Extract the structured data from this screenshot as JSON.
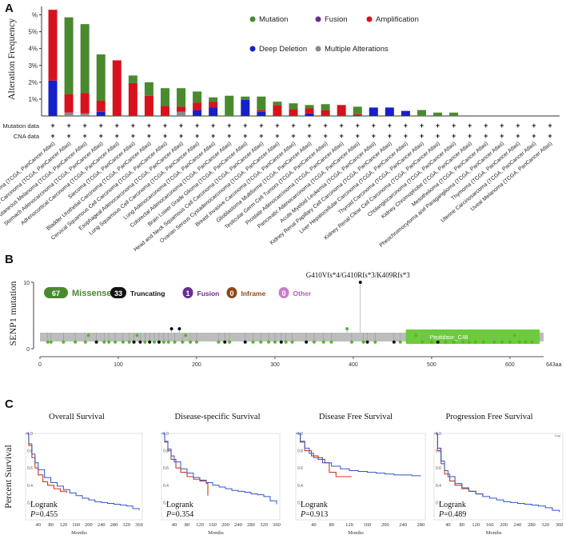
{
  "panels": {
    "a": "A",
    "b": "B",
    "c": "C"
  },
  "colors": {
    "mutation": "#4a8a2e",
    "fusion": "#6a2c91",
    "amplification": "#d8121d",
    "deep_deletion": "#1520c8",
    "multiple": "#8a8a8a",
    "lollipop_green": "#55b72d",
    "domain_green": "#6ccc3c",
    "km_blue": "#2f55c9",
    "km_red": "#d23a1a"
  },
  "chart_data": [
    {
      "type": "bar",
      "title": "",
      "ylabel": "Alteration Frequency",
      "ylim": [
        0,
        6.5
      ],
      "yticks": [
        1,
        2,
        3,
        4,
        5,
        6
      ],
      "ytick_labels": [
        "1%",
        "2%",
        "3%",
        "4%",
        "5%",
        "%"
      ],
      "legend": [
        "Mutation",
        "Fusion",
        "Amplification",
        "Deep Deletion",
        "Multiple Alterations"
      ],
      "row_labels": [
        "Mutation data",
        "CNA data"
      ],
      "row_marker": "+",
      "categories": [
        "Diffuse Large B-Cell Lymphoma (TCGA, PanCancer Atlas)",
        "Uterine Corpus Endometrial Carcinoma (TCGA, PanCancer Atlas)",
        "Skin Cutaneous Melanoma (TCGA, PanCancer Atlas)",
        "Stomach Adenocarcinoma (TCGA, PanCancer Atlas)",
        "Adrenocortical Carcinoma (TCGA, PanCancer Atlas)",
        "Sarcoma (TCGA, PanCancer Atlas)",
        "Bladder Urothelial Carcinoma (TCGA, PanCancer Atlas)",
        "Cervical Squamous Cell Carcinoma (TCGA, PanCancer Atlas)",
        "Esophageal Adenocarcinoma (TCGA, PanCancer Atlas)",
        "Lung Squamous Cell Carcinoma (TCGA, PanCancer Atlas)",
        "Lung Adenocarcinoma (TCGA, PanCancer Atlas)",
        "Colorectal Adenocarcinoma (TCGA, PanCancer Atlas)",
        "Brain Lower Grade Glioma (TCGA, PanCancer Atlas)",
        "Head and Neck Squamous Cell Carcinoma (TCGA, PanCancer Atlas)",
        "Ovarian Serous Cystadenocarcinoma (TCGA, PanCancer Atlas)",
        "Breast Invasive Carcinoma (TCGA, PanCancer Atlas)",
        "Glioblastoma Multiforme (TCGA, PanCancer Atlas)",
        "Testicular Germ Cell Tumors (TCGA, PanCancer Atlas)",
        "Prostate Adenocarcinoma (TCGA, PanCancer Atlas)",
        "Pancreatic Adenocarcinoma (TCGA, PanCancer Atlas)",
        "Acute Myeloid Leukemia (TCGA, PanCancer Atlas)",
        "Kidney Renal Papillary Cell Carcinoma (TCGA, PanCancer Atlas)",
        "Liver Hepatocellular Carcinoma (TCGA, PanCancer Atlas)",
        "Thyroid Carcinoma (TCGA, PanCancer Atlas)",
        "Kidney Renal Clear Cell Carcinoma (TCGA, PanCancer Atlas)",
        "Cholangiocarcinoma (TCGA, PanCancer Atlas)",
        "Kidney Chromophobe (TCGA, PanCancer Atlas)",
        "Mesothelioma (TCGA, PanCancer Atlas)",
        "Pheochromocytoma and Paraganglioma (TCGA, PanCancer Atlas)",
        "Thymoma (TCGA, PanCancer Atlas)",
        "Uterine Carcinosarcoma (TCGA, PanCancer Atlas)",
        "Uveal Melanoma (TCGA, PanCancer Atlas)"
      ],
      "series": [
        {
          "name": "Deep Deletion",
          "values": [
            2.1,
            0,
            0,
            0.25,
            0,
            0,
            0,
            0,
            0,
            0.35,
            0.5,
            0,
            0.95,
            0.25,
            0,
            0,
            0.15,
            0,
            0,
            0,
            0.5,
            0.5,
            0.3,
            0,
            0,
            0,
            0,
            0,
            0,
            0,
            0,
            0
          ]
        },
        {
          "name": "Multiple Alterations",
          "values": [
            0,
            0.2,
            0.15,
            0,
            0,
            0,
            0,
            0,
            0.25,
            0,
            0,
            0,
            0,
            0,
            0,
            0,
            0,
            0,
            0,
            0,
            0,
            0,
            0,
            0,
            0,
            0,
            0,
            0,
            0,
            0,
            0,
            0
          ]
        },
        {
          "name": "Amplification",
          "values": [
            4.2,
            1.1,
            1.2,
            0.65,
            3.3,
            1.95,
            1.2,
            0.6,
            0.3,
            0.45,
            0.35,
            0,
            0,
            0.1,
            0.65,
            0.4,
            0.3,
            0.35,
            0.65,
            0.1,
            0,
            0,
            0,
            0,
            0,
            0,
            0,
            0,
            0,
            0,
            0,
            0
          ]
        },
        {
          "name": "Mutation",
          "values": [
            0,
            4.55,
            4.1,
            2.75,
            0,
            0.45,
            0.8,
            1.05,
            1.1,
            0.65,
            0.25,
            1.2,
            0.2,
            0.8,
            0.2,
            0.35,
            0.2,
            0.35,
            0,
            0.45,
            0,
            0,
            0,
            0.35,
            0.2,
            0.2,
            0,
            0,
            0,
            0,
            0,
            0
          ]
        }
      ]
    },
    {
      "type": "scatter",
      "title": "",
      "ylabel": "SENP1 mutation",
      "ylim": [
        0,
        10
      ],
      "yticks": [
        0,
        10
      ],
      "xlim": [
        0,
        643
      ],
      "xticks": [
        0,
        100,
        200,
        300,
        400,
        500,
        600
      ],
      "x_end_label": "643aa",
      "domain": {
        "name": "Peptidase_C48",
        "start": 467,
        "end": 638
      },
      "hotspot_label": "G410Vfs*4/G410Rfs*3/K409Rfs*3",
      "legend": [
        {
          "count": "67",
          "label": "Missense"
        },
        {
          "count": "33",
          "label": "Truncating"
        },
        {
          "count": "1",
          "label": "Fusion"
        },
        {
          "count": "0",
          "label": "Inframe"
        },
        {
          "count": "0",
          "label": "Other"
        }
      ],
      "points": [
        {
          "x": 10,
          "y": 1,
          "type": "missense"
        },
        {
          "x": 14,
          "y": 1,
          "type": "missense"
        },
        {
          "x": 30,
          "y": 1,
          "type": "missense"
        },
        {
          "x": 45,
          "y": 1,
          "type": "missense"
        },
        {
          "x": 58,
          "y": 1,
          "type": "missense"
        },
        {
          "x": 62,
          "y": 2,
          "type": "missense"
        },
        {
          "x": 72,
          "y": 1,
          "type": "truncating"
        },
        {
          "x": 82,
          "y": 1,
          "type": "missense"
        },
        {
          "x": 88,
          "y": 1,
          "type": "missense"
        },
        {
          "x": 96,
          "y": 1,
          "type": "missense"
        },
        {
          "x": 106,
          "y": 1,
          "type": "missense"
        },
        {
          "x": 114,
          "y": 1,
          "type": "missense"
        },
        {
          "x": 120,
          "y": 1,
          "type": "truncating"
        },
        {
          "x": 124,
          "y": 2,
          "type": "missense"
        },
        {
          "x": 128,
          "y": 1,
          "type": "truncating"
        },
        {
          "x": 134,
          "y": 1,
          "type": "missense"
        },
        {
          "x": 140,
          "y": 1,
          "type": "truncating"
        },
        {
          "x": 146,
          "y": 1,
          "type": "missense"
        },
        {
          "x": 152,
          "y": 1,
          "type": "truncating"
        },
        {
          "x": 158,
          "y": 1,
          "type": "missense"
        },
        {
          "x": 164,
          "y": 1,
          "type": "missense"
        },
        {
          "x": 168,
          "y": 3,
          "type": "truncating"
        },
        {
          "x": 172,
          "y": 1,
          "type": "missense"
        },
        {
          "x": 178,
          "y": 3,
          "type": "truncating"
        },
        {
          "x": 182,
          "y": 1,
          "type": "missense"
        },
        {
          "x": 186,
          "y": 2,
          "type": "missense"
        },
        {
          "x": 192,
          "y": 1,
          "type": "missense"
        },
        {
          "x": 200,
          "y": 1,
          "type": "missense"
        },
        {
          "x": 228,
          "y": 1,
          "type": "missense"
        },
        {
          "x": 236,
          "y": 1,
          "type": "truncating"
        },
        {
          "x": 242,
          "y": 1,
          "type": "missense"
        },
        {
          "x": 262,
          "y": 1,
          "type": "truncating"
        },
        {
          "x": 272,
          "y": 1,
          "type": "missense"
        },
        {
          "x": 282,
          "y": 1,
          "type": "missense"
        },
        {
          "x": 292,
          "y": 1,
          "type": "missense"
        },
        {
          "x": 300,
          "y": 1,
          "type": "missense"
        },
        {
          "x": 308,
          "y": 1,
          "type": "truncating"
        },
        {
          "x": 314,
          "y": 1,
          "type": "missense"
        },
        {
          "x": 322,
          "y": 1,
          "type": "missense"
        },
        {
          "x": 340,
          "y": 1,
          "type": "truncating"
        },
        {
          "x": 350,
          "y": 1,
          "type": "missense"
        },
        {
          "x": 362,
          "y": 1,
          "type": "missense"
        },
        {
          "x": 372,
          "y": 1,
          "type": "missense"
        },
        {
          "x": 392,
          "y": 3,
          "type": "missense"
        },
        {
          "x": 398,
          "y": 1,
          "type": "missense"
        },
        {
          "x": 409,
          "y": 10,
          "type": "truncating"
        },
        {
          "x": 413,
          "y": 1,
          "type": "missense"
        },
        {
          "x": 418,
          "y": 1,
          "type": "truncating"
        },
        {
          "x": 428,
          "y": 1,
          "type": "missense"
        },
        {
          "x": 452,
          "y": 1,
          "type": "truncating"
        },
        {
          "x": 460,
          "y": 1,
          "type": "missense"
        },
        {
          "x": 480,
          "y": 2,
          "type": "missense"
        },
        {
          "x": 488,
          "y": 1,
          "type": "missense"
        },
        {
          "x": 500,
          "y": 1,
          "type": "missense"
        },
        {
          "x": 508,
          "y": 1,
          "type": "truncating"
        },
        {
          "x": 518,
          "y": 1,
          "type": "missense"
        },
        {
          "x": 528,
          "y": 1,
          "type": "missense"
        },
        {
          "x": 540,
          "y": 1,
          "type": "missense"
        },
        {
          "x": 548,
          "y": 1,
          "type": "missense"
        },
        {
          "x": 556,
          "y": 1,
          "type": "missense"
        },
        {
          "x": 566,
          "y": 1,
          "type": "missense"
        },
        {
          "x": 580,
          "y": 1,
          "type": "missense"
        },
        {
          "x": 590,
          "y": 1,
          "type": "missense"
        },
        {
          "x": 600,
          "y": 1,
          "type": "missense"
        },
        {
          "x": 606,
          "y": 2,
          "type": "missense"
        },
        {
          "x": 612,
          "y": 1,
          "type": "missense"
        },
        {
          "x": 620,
          "y": 1,
          "type": "missense"
        },
        {
          "x": 628,
          "y": 1,
          "type": "missense"
        }
      ]
    },
    {
      "type": "line",
      "title": "Overall Survival",
      "ylabel": "Percent Survival",
      "xlabel": "Months",
      "xlim": [
        0,
        370
      ],
      "ylim": [
        0,
        1.0
      ],
      "xticks": [
        40,
        80,
        120,
        160,
        200,
        240,
        280,
        320,
        360
      ],
      "stat_label": "Logrank",
      "p_prefix": "P",
      "p_value": "=0.455",
      "series": [
        {
          "name": "Altered",
          "x": [
            0,
            10,
            20,
            30,
            40,
            55,
            70,
            90,
            110,
            130
          ],
          "y": [
            1.0,
            0.86,
            0.72,
            0.6,
            0.52,
            0.44,
            0.4,
            0.36,
            0.33,
            0.31
          ]
        },
        {
          "name": "Unaltered",
          "x": [
            0,
            10,
            20,
            30,
            40,
            60,
            80,
            100,
            120,
            140,
            160,
            180,
            200,
            220,
            240,
            260,
            280,
            300,
            320,
            340,
            360
          ],
          "y": [
            1.0,
            0.88,
            0.76,
            0.66,
            0.58,
            0.49,
            0.43,
            0.39,
            0.35,
            0.31,
            0.28,
            0.25,
            0.23,
            0.21,
            0.2,
            0.19,
            0.18,
            0.17,
            0.16,
            0.13,
            0.11
          ]
        }
      ]
    },
    {
      "type": "line",
      "title": "Disease-specific Survival",
      "xlabel": "Months",
      "xlim": [
        0,
        370
      ],
      "ylim": [
        0,
        1.0
      ],
      "xticks": [
        40,
        80,
        120,
        160,
        200,
        240,
        280,
        320,
        360
      ],
      "stat_label": "Logrank",
      "p_prefix": "P",
      "p_value": "=0.354",
      "series": [
        {
          "name": "Altered",
          "x": [
            0,
            10,
            20,
            30,
            45,
            60,
            80,
            100,
            120,
            140,
            145
          ],
          "y": [
            1.0,
            0.9,
            0.8,
            0.7,
            0.6,
            0.55,
            0.5,
            0.47,
            0.45,
            0.42,
            0.28
          ]
        },
        {
          "name": "Unaltered",
          "x": [
            0,
            10,
            20,
            30,
            40,
            60,
            80,
            100,
            120,
            140,
            160,
            180,
            200,
            220,
            240,
            260,
            280,
            300,
            320,
            340,
            360
          ],
          "y": [
            1.0,
            0.91,
            0.82,
            0.74,
            0.67,
            0.59,
            0.54,
            0.49,
            0.46,
            0.43,
            0.4,
            0.38,
            0.36,
            0.34,
            0.33,
            0.32,
            0.3,
            0.29,
            0.27,
            0.22,
            0.18
          ]
        }
      ]
    },
    {
      "type": "line",
      "title": "Disease Free Survival",
      "xlabel": "Months",
      "xlim": [
        0,
        290
      ],
      "ylim": [
        0,
        1.0
      ],
      "xticks": [
        40,
        80,
        120,
        160,
        200,
        240,
        280
      ],
      "stat_label": "Logrank",
      "p_prefix": "P",
      "p_value": "=0.913",
      "series": [
        {
          "name": "Altered",
          "x": [
            0,
            10,
            20,
            35,
            50,
            65,
            75,
            90,
            105,
            125
          ],
          "y": [
            1.0,
            0.9,
            0.8,
            0.74,
            0.7,
            0.66,
            0.55,
            0.5,
            0.5,
            0.5
          ]
        },
        {
          "name": "Unaltered",
          "x": [
            0,
            10,
            20,
            30,
            40,
            60,
            80,
            100,
            120,
            140,
            160,
            180,
            200,
            220,
            240,
            260,
            280
          ],
          "y": [
            1.0,
            0.91,
            0.83,
            0.77,
            0.72,
            0.66,
            0.62,
            0.59,
            0.57,
            0.56,
            0.55,
            0.54,
            0.53,
            0.52,
            0.52,
            0.51,
            0.51
          ]
        }
      ]
    },
    {
      "type": "line",
      "title": "Progression Free Survival",
      "xlabel": "Months",
      "xlim": [
        0,
        370
      ],
      "ylim": [
        0,
        1.0
      ],
      "xticks": [
        40,
        80,
        120,
        160,
        200,
        240,
        280,
        320,
        360
      ],
      "stat_label": "Logrank",
      "p_prefix": "P",
      "p_value": "=0.489",
      "corner_note": "Log",
      "series": [
        {
          "name": "Altered",
          "x": [
            0,
            10,
            20,
            30,
            45,
            60,
            80,
            100,
            120,
            140
          ],
          "y": [
            1.0,
            0.8,
            0.65,
            0.53,
            0.45,
            0.4,
            0.36,
            0.33,
            0.3,
            0.27
          ]
        },
        {
          "name": "Unaltered",
          "x": [
            0,
            10,
            20,
            30,
            40,
            60,
            80,
            100,
            120,
            140,
            160,
            180,
            200,
            220,
            240,
            260,
            280,
            300,
            320,
            340,
            360
          ],
          "y": [
            1.0,
            0.83,
            0.68,
            0.57,
            0.5,
            0.42,
            0.37,
            0.33,
            0.3,
            0.27,
            0.25,
            0.23,
            0.21,
            0.2,
            0.19,
            0.18,
            0.17,
            0.16,
            0.14,
            0.11,
            0.09
          ]
        }
      ]
    }
  ]
}
